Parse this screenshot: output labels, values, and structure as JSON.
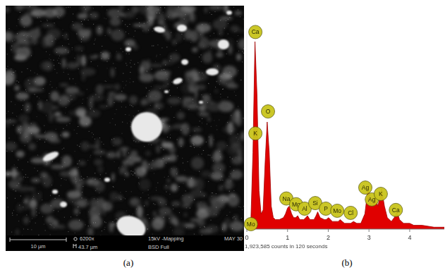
{
  "figure": {
    "captions": [
      "(a)",
      "(b)"
    ]
  },
  "sem_image": {
    "scale_bar": "10 µm",
    "magnification": "6200x",
    "voltage": "15kV -Mapping",
    "date": "MAY 30",
    "field_width": "43.7 µm",
    "detector": "BSD Full"
  },
  "chart_data": {
    "type": "area",
    "subtitle": "1,923,585 counts in 120 seconds",
    "color": "#e00000",
    "x": [
      0,
      0.05,
      0.1,
      0.15,
      0.2,
      0.25,
      0.3,
      0.35,
      0.4,
      0.45,
      0.5,
      0.55,
      0.6,
      0.65,
      0.7,
      0.8,
      0.9,
      0.95,
      1.0,
      1.04,
      1.1,
      1.15,
      1.2,
      1.25,
      1.3,
      1.4,
      1.45,
      1.49,
      1.55,
      1.65,
      1.7,
      1.74,
      1.8,
      1.9,
      1.95,
      2.01,
      2.1,
      2.2,
      2.25,
      2.29,
      2.4,
      2.55,
      2.62,
      2.7,
      2.8,
      2.9,
      2.98,
      3.05,
      3.1,
      3.15,
      3.22,
      3.28,
      3.31,
      3.38,
      3.45,
      3.55,
      3.62,
      3.69,
      3.75,
      3.85,
      4.0,
      4.1,
      4.3,
      4.6,
      4.85
    ],
    "values": [
      0,
      1,
      5,
      40,
      98,
      70,
      20,
      8,
      10,
      35,
      56,
      40,
      12,
      6,
      5,
      5,
      6,
      8,
      11,
      12,
      8,
      6,
      6,
      7,
      5,
      5,
      6,
      7,
      5,
      5,
      7,
      9,
      6,
      5,
      5,
      6,
      4,
      4,
      4,
      5,
      3,
      3,
      4,
      3,
      3,
      8,
      22,
      14,
      13,
      17,
      12,
      18,
      21,
      12,
      6,
      4,
      6,
      9,
      5,
      3,
      3,
      2,
      2,
      1,
      1
    ],
    "xlim": [
      0,
      4.85
    ],
    "xticks": [
      0,
      1,
      2,
      3,
      4
    ],
    "ylim": [
      0,
      105
    ],
    "tick_labels": "x",
    "annotations": [
      {
        "text": "Ca",
        "x": 0.21,
        "y": 103
      },
      {
        "text": "O",
        "x": 0.52,
        "y": 61.5
      },
      {
        "text": "K",
        "x": 0.21,
        "y": 50
      },
      {
        "text": "Mo",
        "x": 0.1,
        "y": 2.6
      },
      {
        "text": "Na",
        "x": 0.97,
        "y": 16
      },
      {
        "text": "Mg",
        "x": 1.21,
        "y": 13
      },
      {
        "text": "Al",
        "x": 1.42,
        "y": 10.7
      },
      {
        "text": "Si",
        "x": 1.68,
        "y": 13.6
      },
      {
        "text": "P",
        "x": 1.94,
        "y": 10.7
      },
      {
        "text": "Mo",
        "x": 2.22,
        "y": 9.6
      },
      {
        "text": "Cl",
        "x": 2.55,
        "y": 8.5
      },
      {
        "text": "Ag",
        "x": 2.91,
        "y": 21.7
      },
      {
        "text": "Ag",
        "x": 3.07,
        "y": 15.5
      },
      {
        "text": "K",
        "x": 3.29,
        "y": 18.4
      },
      {
        "text": "Ca",
        "x": 3.66,
        "y": 10
      }
    ]
  }
}
